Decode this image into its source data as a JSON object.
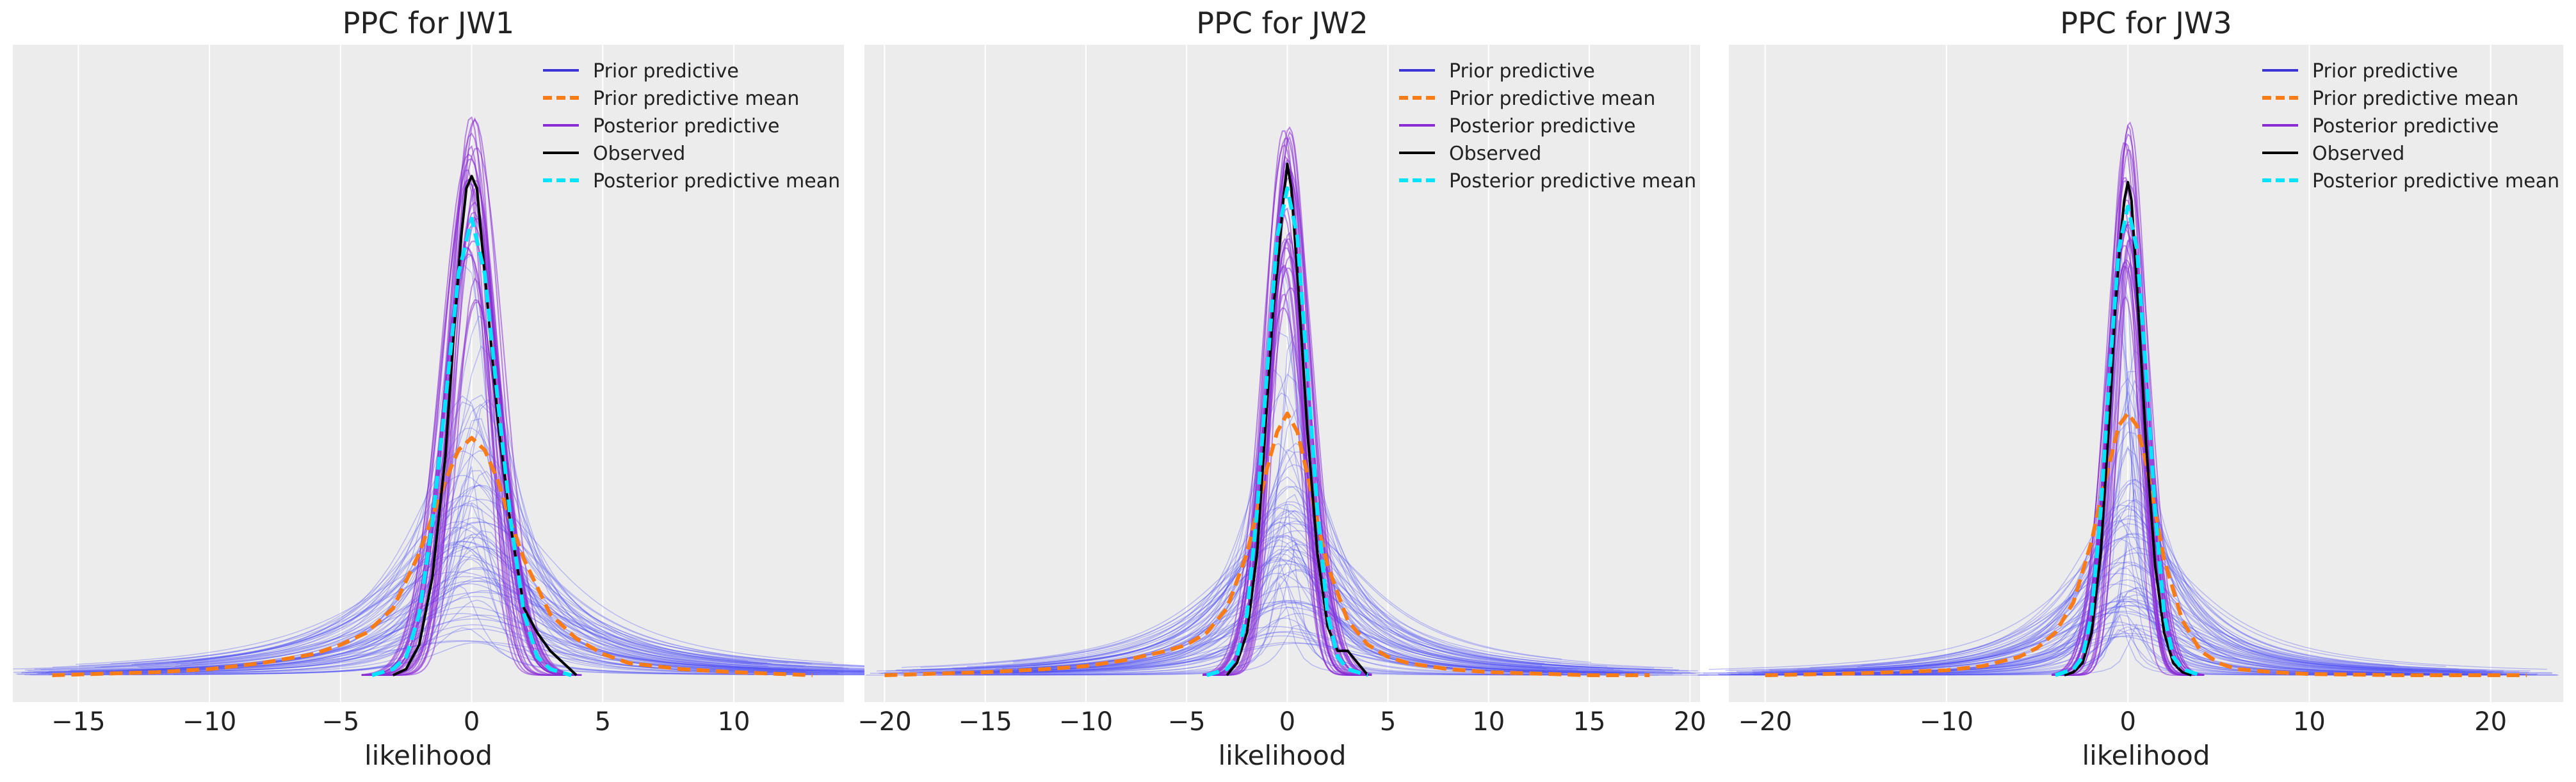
{
  "colors": {
    "background": "#ffffff",
    "panel": "#ececec",
    "grid": "#ffffff",
    "prior_predictive": "#3b34d6",
    "prior_predictive_samples": "#5050f5",
    "prior_predictive_mean": "#fa7c17",
    "posterior_predictive": "#8a2bd6",
    "observed": "#000000",
    "posterior_predictive_mean": "#00e5ff",
    "text": "#222222"
  },
  "chart_data": [
    {
      "type": "line",
      "title": "PPC for JW1",
      "xlabel": "likelihood",
      "ylabel": "",
      "xlim": [
        -17.5,
        14.2
      ],
      "ylim": [
        0,
        1.0
      ],
      "xticks": [
        -15,
        -10,
        -5,
        0,
        5,
        10
      ],
      "grid": true,
      "legend": {
        "placement": "top-right",
        "entries": [
          "Prior predictive",
          "Prior predictive mean",
          "Posterior predictive",
          "Observed",
          "Posterior predictive mean"
        ]
      },
      "series": [
        {
          "name": "Prior predictive mean",
          "style": "dashed",
          "x": [
            -16,
            -12,
            -10,
            -8,
            -6,
            -5,
            -4,
            -3,
            -2,
            -1.5,
            -1,
            -0.5,
            0,
            0.5,
            1,
            1.5,
            2,
            3,
            4,
            5,
            6,
            8,
            10,
            13
          ],
          "y": [
            0.0,
            0.005,
            0.01,
            0.02,
            0.035,
            0.05,
            0.07,
            0.11,
            0.2,
            0.26,
            0.32,
            0.37,
            0.39,
            0.37,
            0.32,
            0.25,
            0.19,
            0.1,
            0.06,
            0.035,
            0.02,
            0.01,
            0.005,
            0.0
          ]
        },
        {
          "name": "Observed",
          "style": "solid",
          "x": [
            -3,
            -2.5,
            -2,
            -1.5,
            -1,
            -0.7,
            -0.4,
            -0.2,
            0,
            0.2,
            0.5,
            1,
            1.5,
            2,
            2.5,
            3,
            3.5,
            4
          ],
          "y": [
            0.0,
            0.01,
            0.05,
            0.16,
            0.36,
            0.55,
            0.72,
            0.8,
            0.82,
            0.8,
            0.66,
            0.42,
            0.24,
            0.11,
            0.07,
            0.04,
            0.02,
            0.0
          ]
        },
        {
          "name": "Posterior predictive mean",
          "style": "dashed",
          "x": [
            -3.8,
            -3,
            -2.5,
            -2,
            -1.5,
            -1,
            -0.5,
            0,
            0.5,
            1,
            1.5,
            2,
            2.5,
            3,
            3.8
          ],
          "y": [
            0.0,
            0.01,
            0.03,
            0.1,
            0.25,
            0.45,
            0.66,
            0.75,
            0.66,
            0.45,
            0.25,
            0.1,
            0.03,
            0.01,
            0.0
          ]
        }
      ]
    },
    {
      "type": "line",
      "title": "PPC for JW2",
      "xlabel": "likelihood",
      "ylabel": "",
      "xlim": [
        -21.0,
        20.5
      ],
      "ylim": [
        0,
        1.0
      ],
      "xticks": [
        -20,
        -15,
        -10,
        -5,
        0,
        5,
        10,
        15,
        20
      ],
      "grid": true,
      "legend": {
        "placement": "top-right",
        "entries": [
          "Prior predictive",
          "Prior predictive mean",
          "Posterior predictive",
          "Observed",
          "Posterior predictive mean"
        ]
      },
      "series": [
        {
          "name": "Prior predictive mean",
          "style": "dashed",
          "x": [
            -20,
            -15,
            -12,
            -10,
            -8,
            -6,
            -5,
            -4,
            -3,
            -2,
            -1.5,
            -1,
            -0.5,
            0,
            0.5,
            1,
            1.5,
            2,
            3,
            4,
            5,
            6,
            8,
            10,
            15,
            18
          ],
          "y": [
            0.0,
            0.005,
            0.01,
            0.015,
            0.025,
            0.04,
            0.05,
            0.07,
            0.11,
            0.2,
            0.27,
            0.34,
            0.4,
            0.43,
            0.4,
            0.33,
            0.25,
            0.18,
            0.09,
            0.05,
            0.03,
            0.02,
            0.01,
            0.005,
            0.0,
            0.0
          ]
        },
        {
          "name": "Observed",
          "style": "solid",
          "x": [
            -3,
            -2.5,
            -2,
            -1.5,
            -1,
            -0.7,
            -0.4,
            -0.2,
            0,
            0.2,
            0.5,
            1,
            1.5,
            2,
            2.5,
            3,
            3.5,
            4
          ],
          "y": [
            0.0,
            0.02,
            0.07,
            0.2,
            0.45,
            0.6,
            0.7,
            0.78,
            0.84,
            0.8,
            0.66,
            0.4,
            0.2,
            0.08,
            0.04,
            0.04,
            0.02,
            0.0
          ]
        },
        {
          "name": "Posterior predictive mean",
          "style": "dashed",
          "x": [
            -4,
            -3,
            -2.5,
            -2,
            -1.5,
            -1,
            -0.5,
            0,
            0.5,
            1,
            1.5,
            2,
            2.5,
            3,
            4
          ],
          "y": [
            0.0,
            0.01,
            0.03,
            0.1,
            0.27,
            0.5,
            0.72,
            0.8,
            0.72,
            0.5,
            0.27,
            0.1,
            0.03,
            0.01,
            0.0
          ]
        }
      ]
    },
    {
      "type": "line",
      "title": "PPC for JW3",
      "xlabel": "likelihood",
      "ylabel": "",
      "xlim": [
        -22.0,
        24.0
      ],
      "ylim": [
        0,
        1.0
      ],
      "xticks": [
        -20,
        -10,
        0,
        10,
        20
      ],
      "grid": true,
      "legend": {
        "placement": "top-right",
        "entries": [
          "Prior predictive",
          "Prior predictive mean",
          "Posterior predictive",
          "Observed",
          "Posterior predictive mean"
        ]
      },
      "series": [
        {
          "name": "Prior predictive mean",
          "style": "dashed",
          "x": [
            -20,
            -15,
            -10,
            -8,
            -6,
            -5,
            -4,
            -3,
            -2,
            -1.5,
            -1,
            -0.5,
            0,
            0.5,
            1,
            1.5,
            2,
            3,
            4,
            5,
            6,
            8,
            10,
            15,
            22
          ],
          "y": [
            0.0,
            0.003,
            0.008,
            0.015,
            0.03,
            0.045,
            0.07,
            0.12,
            0.22,
            0.29,
            0.35,
            0.41,
            0.43,
            0.41,
            0.35,
            0.27,
            0.19,
            0.09,
            0.04,
            0.02,
            0.01,
            0.005,
            0.002,
            0.0,
            0.0
          ]
        },
        {
          "name": "Observed",
          "style": "solid",
          "x": [
            -3.5,
            -3,
            -2.5,
            -2,
            -1.5,
            -1,
            -0.7,
            -0.4,
            -0.2,
            0,
            0.2,
            0.5,
            1,
            1.5,
            2,
            2.5,
            3,
            3.5
          ],
          "y": [
            0.0,
            0.005,
            0.02,
            0.07,
            0.2,
            0.43,
            0.6,
            0.72,
            0.78,
            0.81,
            0.78,
            0.64,
            0.38,
            0.18,
            0.07,
            0.02,
            0.005,
            0.0
          ]
        },
        {
          "name": "Posterior predictive mean",
          "style": "dashed",
          "x": [
            -4,
            -3,
            -2.5,
            -2,
            -1.5,
            -1,
            -0.5,
            0,
            0.5,
            1,
            1.5,
            2,
            2.5,
            3,
            4
          ],
          "y": [
            0.0,
            0.01,
            0.03,
            0.1,
            0.27,
            0.5,
            0.7,
            0.77,
            0.7,
            0.5,
            0.27,
            0.1,
            0.03,
            0.01,
            0.0
          ]
        }
      ]
    }
  ]
}
